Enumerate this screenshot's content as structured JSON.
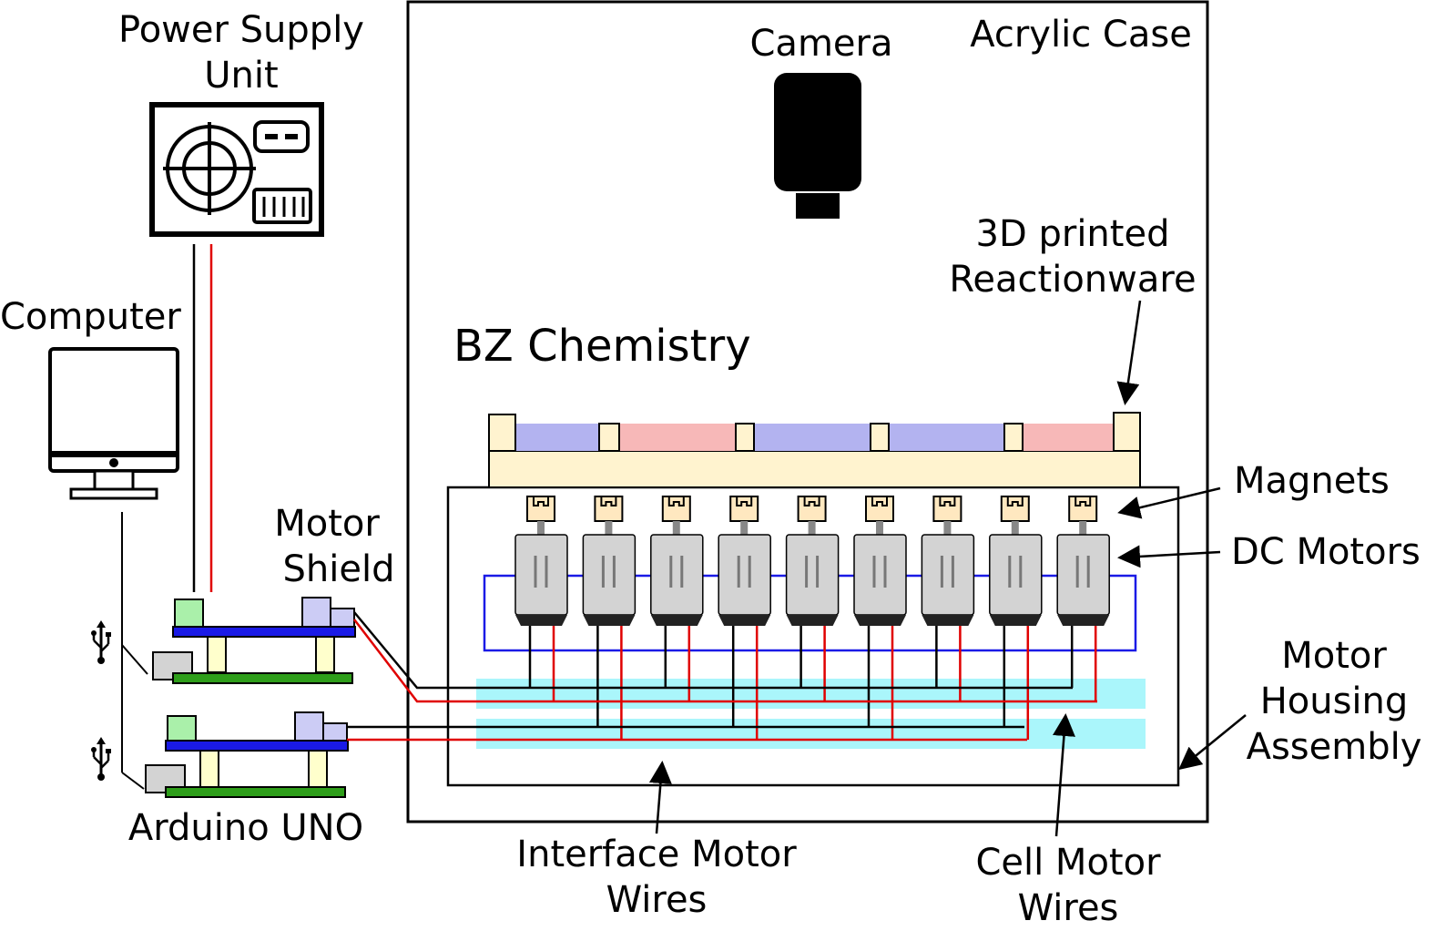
{
  "labels": {
    "power_supply": [
      "Power Supply",
      "Unit"
    ],
    "computer": "Computer",
    "motor_shield": [
      "Motor",
      "Shield"
    ],
    "arduino": "Arduino UNO",
    "camera": "Camera",
    "acrylic_case": "Acrylic Case",
    "reactionware": [
      "3D printed",
      "Reactionware"
    ],
    "bz_chemistry": "BZ Chemistry",
    "magnets": "Magnets",
    "dc_motors": "DC Motors",
    "motor_housing": [
      "Motor",
      "Housing",
      "Assembly"
    ],
    "interface_wires": [
      "Interface Motor",
      "Wires"
    ],
    "cell_wires": [
      "Cell Motor",
      "Wires"
    ]
  },
  "icons": {
    "usb_top": "usb-icon",
    "usb_bottom": "usb-icon"
  },
  "colors": {
    "outline": "#000000",
    "wire_red": "#e00000",
    "wire_blue": "#1a1ae6",
    "board_green": "#2e9e1a",
    "board_blue": "#1a1ae6",
    "reactionware_frame": "#fff3cf",
    "cell_blue": "#b3b3f0",
    "cell_pink": "#f7b8b8",
    "motor_gray": "#d3d3d3",
    "magnet_fill": "#ffe8c0",
    "wire_channel": "#aaf6fb",
    "chip_green": "#aaf0aa",
    "chip_purple": "#ccccf5",
    "spacer_fill": "#ffffcc"
  },
  "diagram": {
    "motor_count": 9,
    "cell_colors": [
      "blue",
      "pink",
      "blue",
      "blue",
      "pink"
    ]
  }
}
